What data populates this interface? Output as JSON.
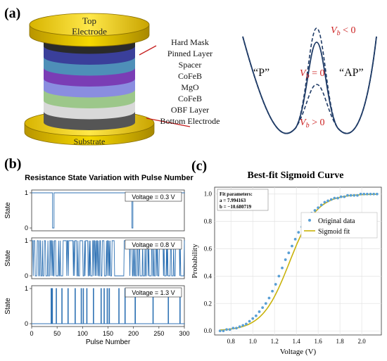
{
  "figure": {
    "panel_a_label": "(a)",
    "panel_b_label": "(b)",
    "panel_c_label": "(c)"
  },
  "panel_a": {
    "top_electrode_line1": "Top",
    "top_electrode_line2": "Electrode",
    "substrate": "Substrate",
    "layers": [
      "Hard Mask",
      "Pinned Layer",
      "Spacer",
      "CoFeB",
      "MgO",
      "CoFeB",
      "OBF Layer",
      "Bottom Electrode"
    ],
    "layer_colors": [
      "#2a2a2a",
      "#3a3f9a",
      "#4e8fb8",
      "#7a3db5",
      "#8a8de0",
      "#9cc78a",
      "#d9d9d9",
      "#555555"
    ],
    "energy": {
      "label_p": "“P”",
      "label_ap": "“AP”",
      "vb_lt": "V_b < 0",
      "vb_eq": "V_b = 0",
      "vb_gt": "V_b > 0",
      "vb_lt_parts": [
        "V",
        "b",
        " < 0"
      ],
      "vb_eq_parts": [
        "V",
        "b",
        " = 0"
      ],
      "vb_gt_parts": [
        "V",
        "b",
        " > 0"
      ],
      "label_color": "#cc2222",
      "curve_color": "#1f3b66"
    }
  },
  "chart_data": [
    {
      "type": "line",
      "title": "Resistance State Variation with Pulse Number",
      "xlabel": "Pulse Number",
      "ylabel": "State",
      "xlim": [
        0,
        300
      ],
      "ylim": [
        0,
        1
      ],
      "xticks": [
        "0",
        "50",
        "100",
        "150",
        "200",
        "250",
        "300"
      ],
      "yticks": [
        "0",
        "1"
      ],
      "series_color": "#2f72b4",
      "subplots": [
        {
          "legend": "Voltage = 0.3 V",
          "default_state": 1,
          "flips_to": 0,
          "flip_pulses": [
            41,
            42,
            43,
            197,
            198
          ]
        },
        {
          "legend": "Voltage = 0.8 V",
          "random_telegraph": true
        },
        {
          "legend": "Voltage = 1.3 V",
          "default_state": 0,
          "flips_to": 1,
          "flip_pulses": [
            38,
            40,
            48,
            59,
            71,
            85,
            97,
            101,
            108,
            121,
            136,
            142,
            148,
            152,
            171,
            183,
            203,
            238,
            268,
            291
          ]
        }
      ]
    },
    {
      "type": "scatter",
      "title": "Best-fit Sigmoid Curve",
      "xlabel": "Voltage (V)",
      "ylabel": "Probability",
      "xlim": [
        0.65,
        2.18
      ],
      "ylim": [
        -0.03,
        1.05
      ],
      "xticks": [
        "0.8",
        "1.0",
        "1.2",
        "1.4",
        "1.6",
        "1.8",
        "2.0"
      ],
      "yticks": [
        "0.0",
        "0.2",
        "0.4",
        "0.6",
        "0.8",
        "1.0"
      ],
      "fit_box_title": "Fit parameters:",
      "fit_a": "a = 7.994163",
      "fit_b": "b = −10.680719",
      "sigmoid": {
        "a": 7.994163,
        "b": -10.680719
      },
      "legend": [
        {
          "name": "Original data",
          "color": "#5a9fd4"
        },
        {
          "name": "Sigmoid fit",
          "color": "#c9b20a"
        }
      ],
      "x": [
        0.7,
        0.73,
        0.76,
        0.79,
        0.82,
        0.85,
        0.88,
        0.91,
        0.94,
        0.97,
        1.0,
        1.03,
        1.06,
        1.09,
        1.12,
        1.15,
        1.18,
        1.21,
        1.24,
        1.27,
        1.3,
        1.33,
        1.36,
        1.39,
        1.42,
        1.45,
        1.48,
        1.51,
        1.54,
        1.57,
        1.6,
        1.63,
        1.66,
        1.69,
        1.72,
        1.75,
        1.78,
        1.81,
        1.84,
        1.87,
        1.9,
        1.93,
        1.96,
        1.99,
        2.02,
        2.05,
        2.08,
        2.11,
        2.14
      ],
      "y": [
        0.0,
        0.0,
        0.01,
        0.01,
        0.02,
        0.02,
        0.03,
        0.04,
        0.05,
        0.07,
        0.09,
        0.11,
        0.14,
        0.17,
        0.2,
        0.24,
        0.29,
        0.34,
        0.4,
        0.46,
        0.52,
        0.57,
        0.62,
        0.67,
        0.72,
        0.76,
        0.8,
        0.83,
        0.86,
        0.88,
        0.9,
        0.92,
        0.94,
        0.95,
        0.96,
        0.97,
        0.97,
        0.98,
        0.98,
        0.99,
        0.99,
        0.99,
        0.99,
        1.0,
        1.0,
        1.0,
        1.0,
        1.0,
        1.0
      ]
    }
  ]
}
